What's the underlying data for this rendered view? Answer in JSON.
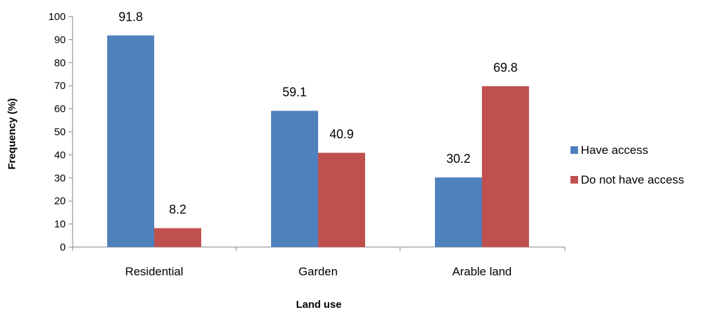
{
  "chart_data": {
    "type": "bar",
    "title": "",
    "xlabel": "Land use",
    "ylabel": "Frequency (%)",
    "ylim": [
      0,
      100
    ],
    "yticks": [
      0,
      10,
      20,
      30,
      40,
      50,
      60,
      70,
      80,
      90,
      100
    ],
    "categories": [
      "Residential",
      "Garden",
      "Arable land"
    ],
    "series": [
      {
        "name": "Have access",
        "color": "#4f81bd",
        "values": [
          91.8,
          59.1,
          30.2
        ]
      },
      {
        "name": "Do not have access",
        "color": "#c0504d",
        "values": [
          8.2,
          40.9,
          69.8
        ]
      }
    ],
    "data_labels": true,
    "grid": false,
    "legend": "right"
  }
}
